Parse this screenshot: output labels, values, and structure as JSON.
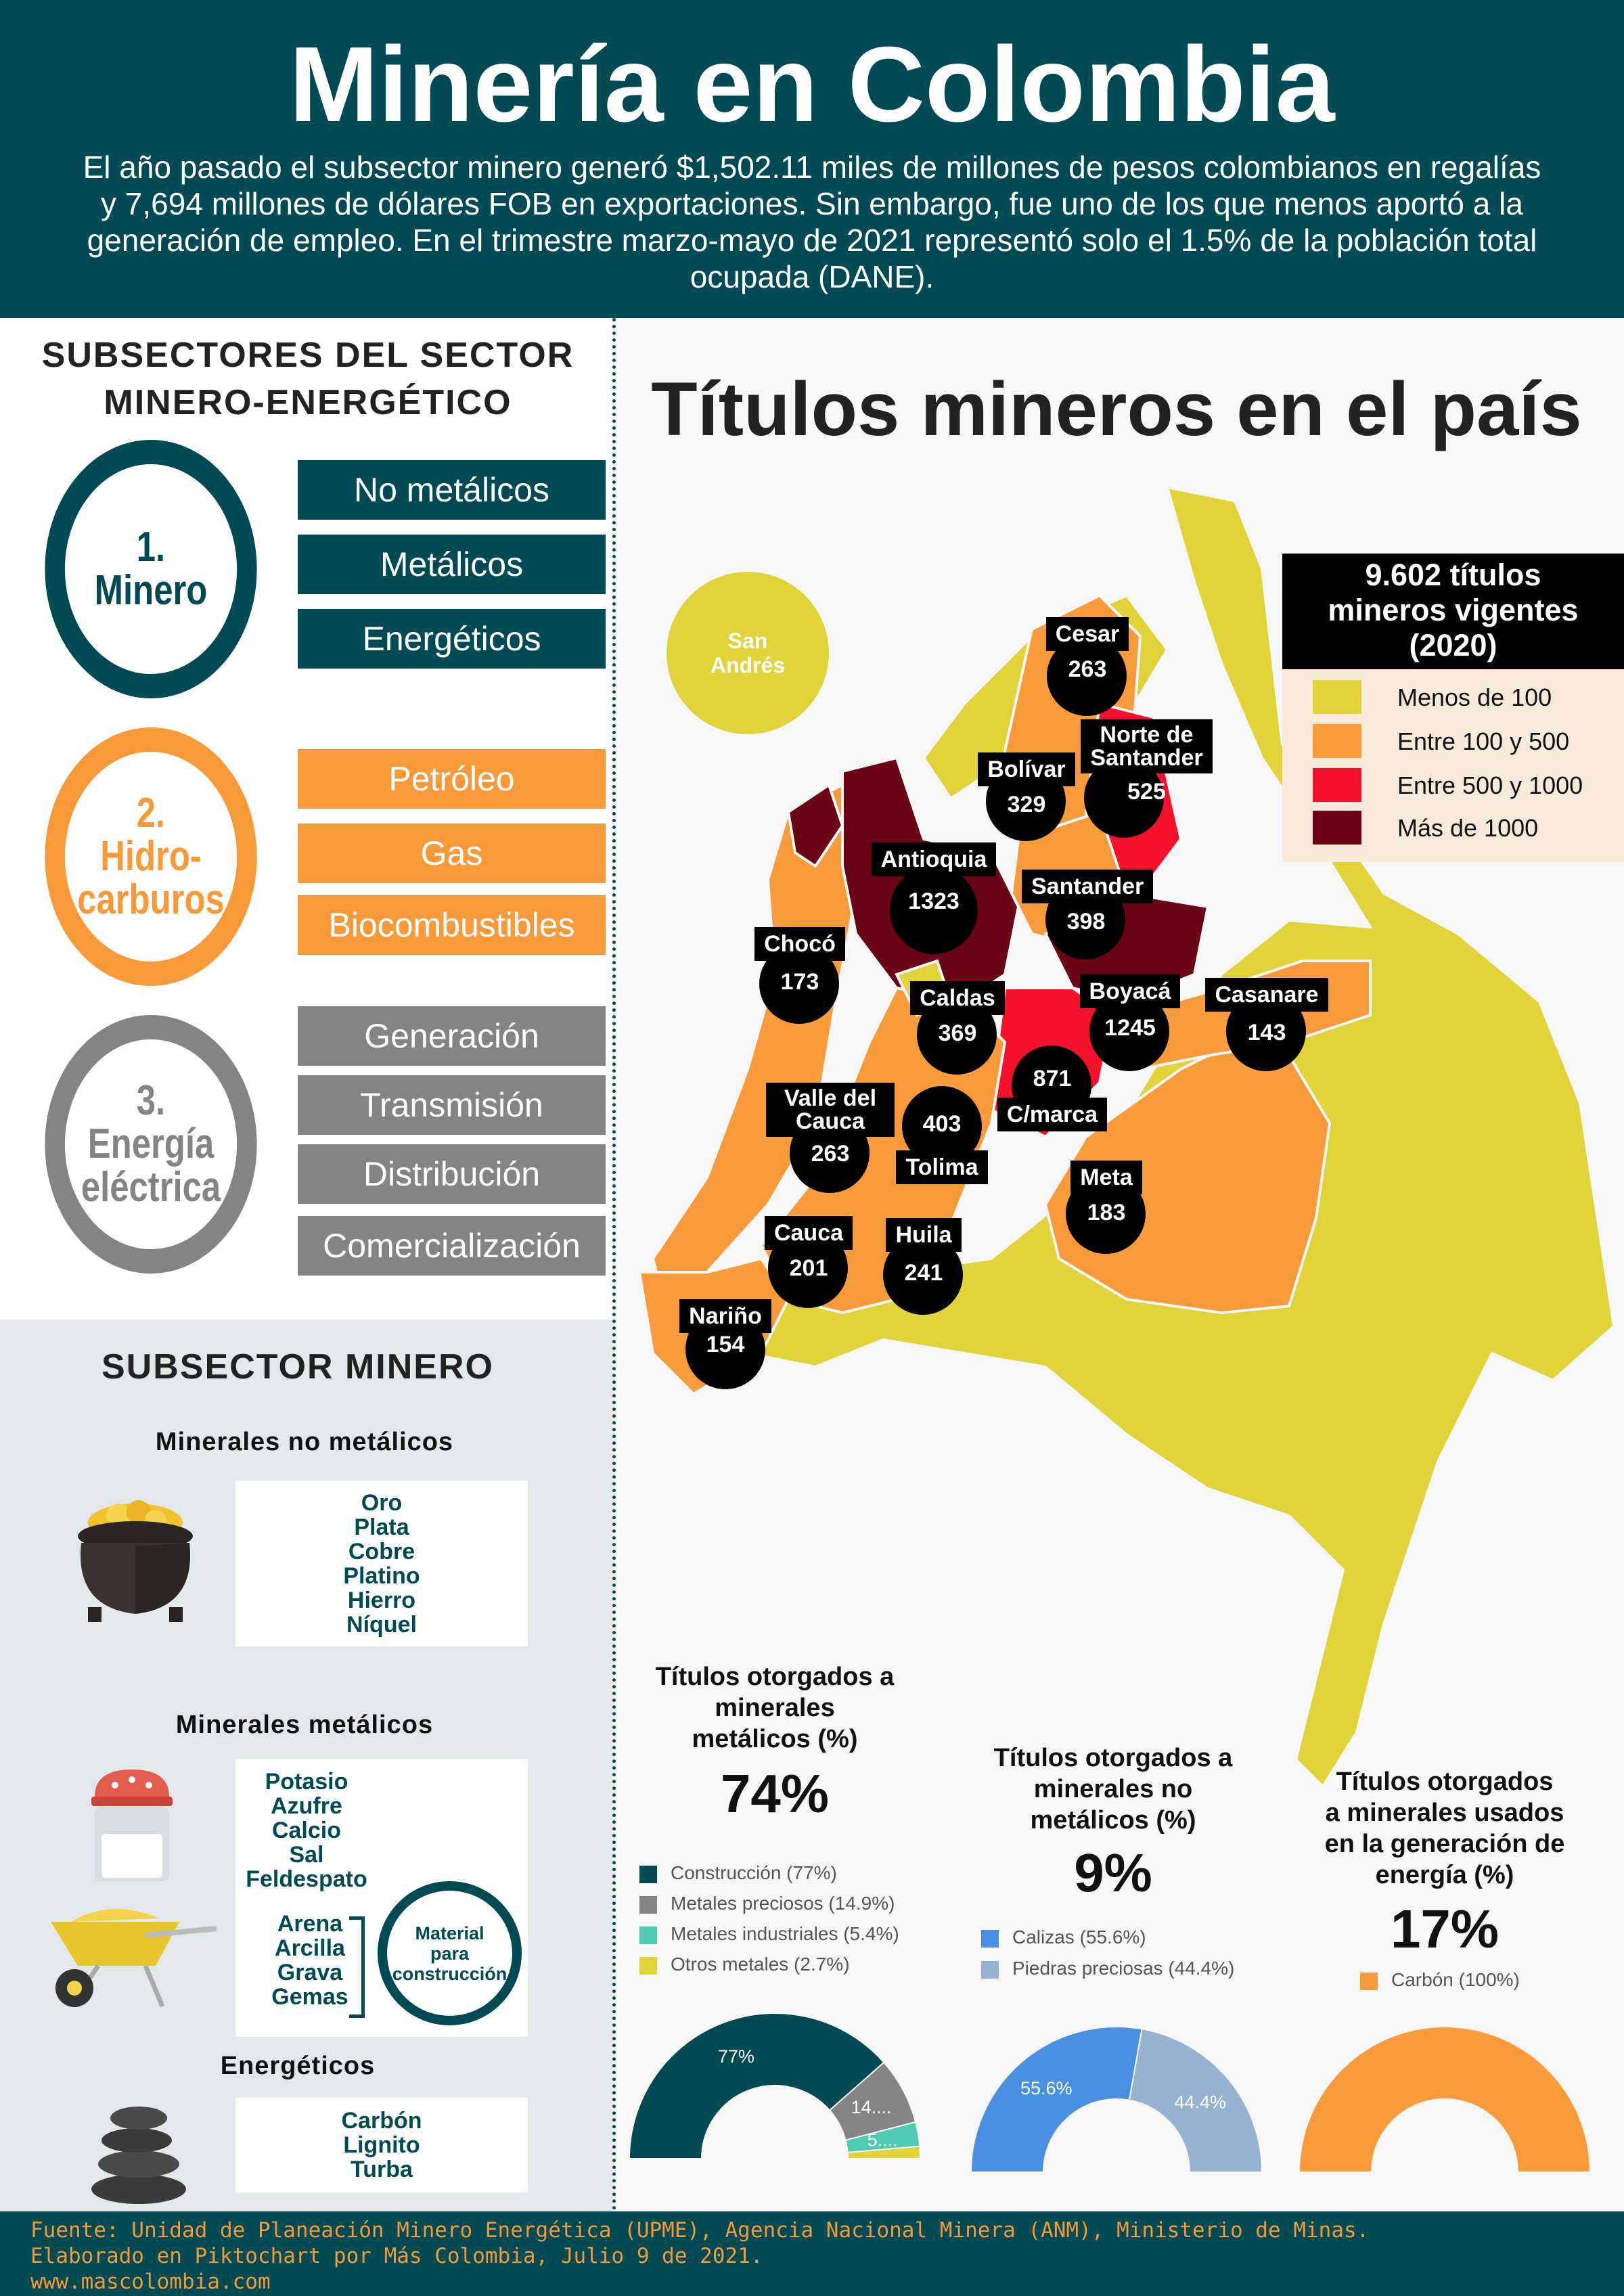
{
  "header": {
    "title": "Minería en Colombia",
    "intro": "El año pasado el subsector minero generó $1,502.11 miles de millones de pesos colombianos en regalías y 7,694 millones de dólares FOB en exportaciones. Sin embargo, fue uno de los que menos aportó a la generación de empleo. En el trimestre marzo-mayo de 2021 representó solo el 1.5% de la población total ocupada (DANE)."
  },
  "subsectores": {
    "heading_line1": "SUBSECTORES DEL SECTOR",
    "heading_line2": "MINERO-ENERGÉTICO",
    "groups": [
      {
        "number": "1.",
        "name_line1": "Minero",
        "name_line2": "",
        "name_line3": "",
        "color": "#004a54",
        "items": [
          "No metálicos",
          "Metálicos",
          "Energéticos"
        ]
      },
      {
        "number": "2.",
        "name_line1": "Hidro-",
        "name_line2": "carburos",
        "name_line3": "",
        "color": "#f89a3a",
        "items": [
          "Petróleo",
          "Gas",
          "Biocombustibles"
        ]
      },
      {
        "number": "3.",
        "name_line1": "Energía",
        "name_line2": "eléctrica",
        "name_line3": "",
        "color": "#848484",
        "items": [
          "Generación",
          "Transmisión",
          "Distribución",
          "Comercialización"
        ]
      }
    ]
  },
  "subsector_minero": {
    "heading": "SUBSECTOR MINERO",
    "no_metalicos_title": "Minerales no metálicos",
    "no_metalicos": [
      "Oro",
      "Plata",
      "Cobre",
      "Platino",
      "Hierro",
      "Níquel"
    ],
    "metalicos_title": "Minerales metálicos",
    "metalicos": [
      "Potasio",
      "Azufre",
      "Calcio",
      "Sal",
      "Feldespato"
    ],
    "construccion": [
      "Arena",
      "Arcilla",
      "Grava",
      "Gemas"
    ],
    "construccion_label_1": "Material",
    "construccion_label_2": "para",
    "construccion_label_3": "construcción",
    "energeticos_title": "Energéticos",
    "energeticos": [
      "Carbón",
      "Lignito",
      "Turba"
    ]
  },
  "map": {
    "title": "Títulos mineros en el país",
    "san_andres_1": "San",
    "san_andres_2": "Andrés",
    "legend_title_1": "9.602 títulos",
    "legend_title_2": "mineros vigentes",
    "legend_title_3": "(2020)",
    "legend": [
      {
        "label": "Menos de 100",
        "color": "#e0d43a"
      },
      {
        "label": "Entre 100 y 500",
        "color": "#f99b3b"
      },
      {
        "label": "Entre 500 y 1000",
        "color": "#f5102c"
      },
      {
        "label": "Más de 1000",
        "color": "#6b0414"
      }
    ],
    "departments": [
      {
        "name": "Cesar",
        "value": "263"
      },
      {
        "name": "Norte de Santander",
        "value": "525"
      },
      {
        "name": "Bolívar",
        "value": "329"
      },
      {
        "name": "Antioquia",
        "value": "1323"
      },
      {
        "name": "Santander",
        "value": "398"
      },
      {
        "name": "Chocó",
        "value": "173"
      },
      {
        "name": "Caldas",
        "value": "369"
      },
      {
        "name": "Boyacá",
        "value": "1245"
      },
      {
        "name": "Casanare",
        "value": "143"
      },
      {
        "name": "C/marca",
        "value": "871"
      },
      {
        "name": "Valle del Cauca",
        "value": "263"
      },
      {
        "name": "Tolima",
        "value": "403"
      },
      {
        "name": "Meta",
        "value": "183"
      },
      {
        "name": "Cauca",
        "value": "201"
      },
      {
        "name": "Huila",
        "value": "241"
      },
      {
        "name": "Nariño",
        "value": "154"
      }
    ]
  },
  "charts": {
    "metalicos": {
      "title_1": "Títulos otorgados a",
      "title_2": "minerales",
      "title_3": "metálicos (%)",
      "pct": "74%",
      "legend": [
        {
          "label": "Construcción (77%)",
          "color": "#004a54"
        },
        {
          "label": "Metales preciosos (14.9%)",
          "color": "#848484"
        },
        {
          "label": "Metales industriales (5.4%)",
          "color": "#4ecbb0"
        },
        {
          "label": "Otros metales (2.7%)",
          "color": "#e0d43a"
        }
      ],
      "slice_labels": [
        "77%",
        "14....",
        "5...."
      ]
    },
    "no_metalicos": {
      "title_1": "Títulos otorgados a",
      "title_2": "minerales no",
      "title_3": "metálicos (%)",
      "pct": "9%",
      "legend": [
        {
          "label": "Calizas (55.6%)",
          "color": "#4a90e2"
        },
        {
          "label": "Piedras preciosas (44.4%)",
          "color": "#98b2d2"
        }
      ],
      "slice_labels": [
        "55.6%",
        "44.4%"
      ]
    },
    "energia": {
      "title_1": "Títulos otorgados",
      "title_2": "a minerales usados",
      "title_3": "en la generación de",
      "title_4": "energía (%)",
      "pct": "17%",
      "legend": [
        {
          "label": "Carbón (100%)",
          "color": "#f99b3b"
        }
      ]
    }
  },
  "chart_data": [
    {
      "type": "pie",
      "title": "Títulos otorgados a minerales metálicos (%)",
      "categories": [
        "Construcción",
        "Metales preciosos",
        "Metales industriales",
        "Otros metales"
      ],
      "values": [
        77,
        14.9,
        5.4,
        2.7
      ]
    },
    {
      "type": "pie",
      "title": "Títulos otorgados a minerales no metálicos (%)",
      "categories": [
        "Calizas",
        "Piedras preciosas"
      ],
      "values": [
        55.6,
        44.4
      ]
    },
    {
      "type": "pie",
      "title": "Títulos otorgados a minerales usados en la generación de energía (%)",
      "categories": [
        "Carbón"
      ],
      "values": [
        100
      ]
    }
  ],
  "footer": {
    "line1": "Fuente: Unidad de Planeación Minero Energética (UPME), Agencia Nacional Minera (ANM), Ministerio de Minas.",
    "line2": "Elaborado en Piktochart por Más Colombia, Julio 9 de 2021.",
    "line3": "www.mascolombia.com"
  }
}
